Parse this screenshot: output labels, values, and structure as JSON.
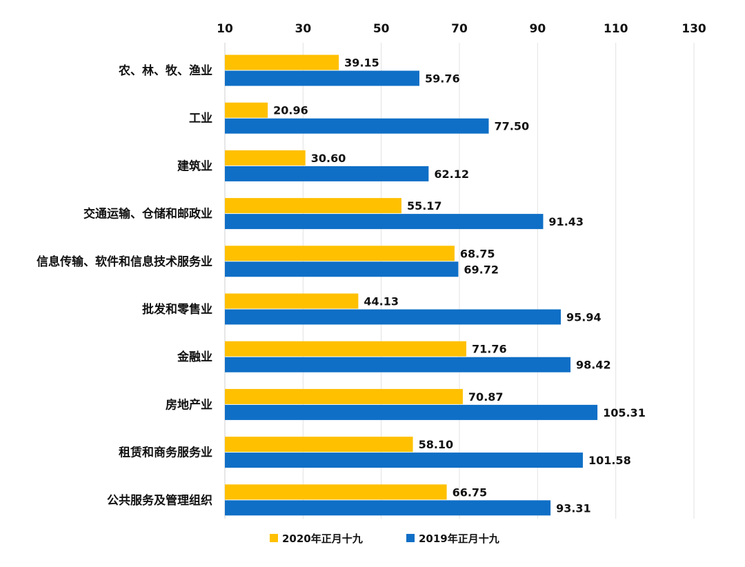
{
  "chart_data": {
    "type": "bar",
    "orientation": "horizontal",
    "categories": [
      "农、林、牧、渔业",
      "工业",
      "建筑业",
      "交通运输、仓储和邮政业",
      "信息传输、软件和信息技术服务业",
      "批发和零售业",
      "金融业",
      "房地产业",
      "租赁和商务服务业",
      "公共服务及管理组织"
    ],
    "series": [
      {
        "name": "2020年正月十九",
        "color": "#FFC000",
        "values": [
          39.15,
          20.96,
          30.6,
          55.17,
          68.75,
          44.13,
          71.76,
          70.87,
          58.1,
          66.75
        ],
        "labels": [
          "39.15",
          "20.96",
          "30.60",
          "55.17",
          "68.75",
          "44.13",
          "71.76",
          "70.87",
          "58.10",
          "66.75"
        ]
      },
      {
        "name": "2019年正月十九",
        "color": "#0F6FC6",
        "values": [
          59.76,
          77.5,
          62.12,
          91.43,
          69.72,
          95.94,
          98.42,
          105.31,
          101.58,
          93.31
        ],
        "labels": [
          "59.76",
          "77.50",
          "62.12",
          "91.43",
          "69.72",
          "95.94",
          "98.42",
          "105.31",
          "101.58",
          "93.31"
        ]
      }
    ],
    "xlim": [
      10,
      130
    ],
    "xticks": [
      "10",
      "30",
      "50",
      "70",
      "90",
      "110",
      "130"
    ],
    "axis_position": "top",
    "grid": true,
    "legend_position": "bottom"
  }
}
